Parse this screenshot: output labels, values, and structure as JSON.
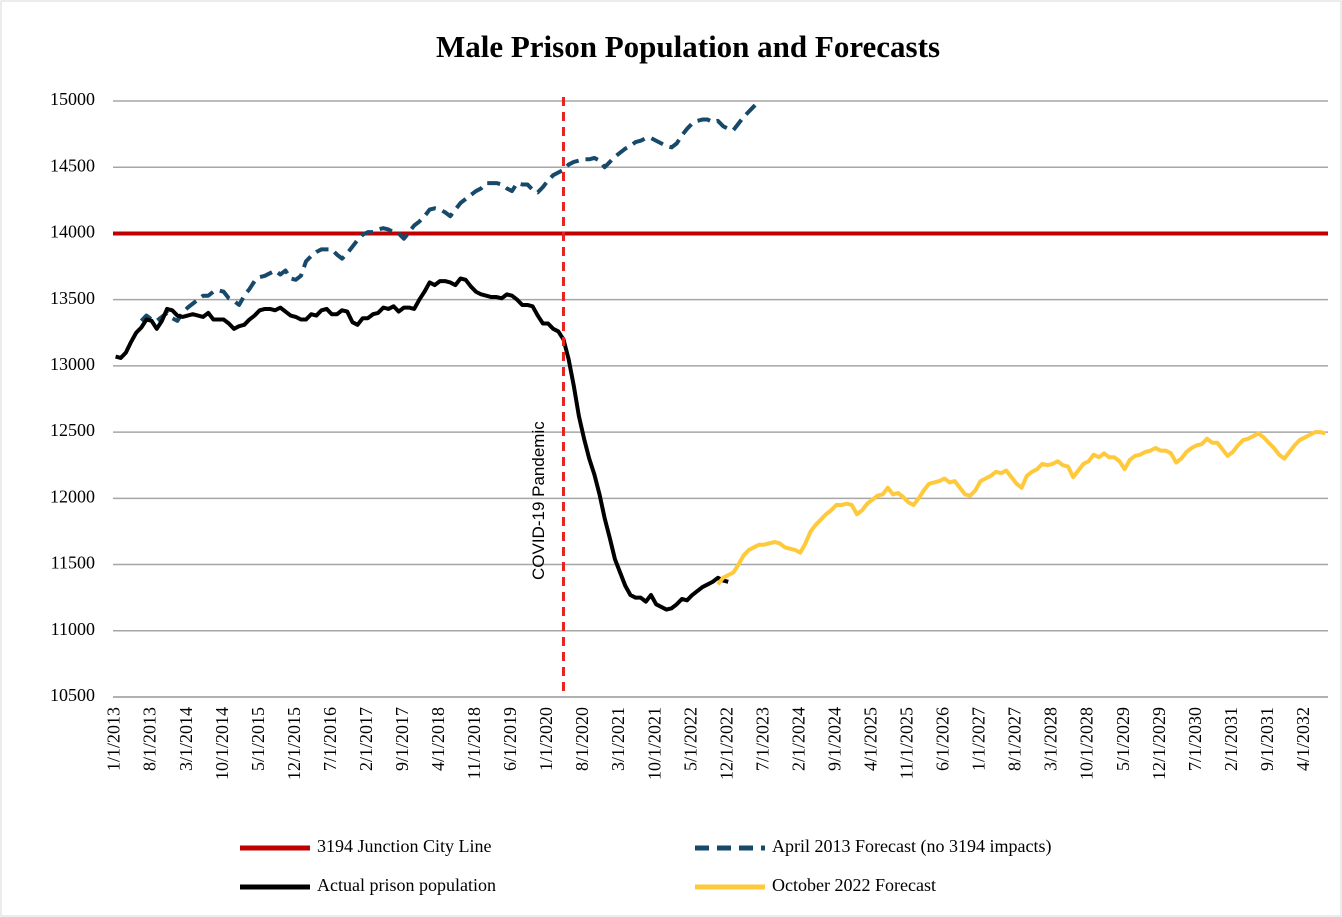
{
  "chart_data": {
    "type": "line",
    "title": "Male Prison Population and Forecasts",
    "categories": [
      "1/1/2013",
      null,
      null,
      null,
      null,
      null,
      null,
      "8/1/2013",
      null,
      null,
      null,
      null,
      null,
      null,
      "3/1/2014",
      null,
      null,
      null,
      null,
      null,
      null,
      "10/1/2014",
      null,
      null,
      null,
      null,
      null,
      null,
      "5/1/2015",
      null,
      null,
      null,
      null,
      null,
      null,
      "12/1/2015",
      null,
      null,
      null,
      null,
      null,
      null,
      "7/1/2016",
      null,
      null,
      null,
      null,
      null,
      null,
      "2/1/2017",
      null,
      null,
      null,
      null,
      null,
      null,
      "9/1/2017",
      null,
      null,
      null,
      null,
      null,
      null,
      "4/1/2018",
      null,
      null,
      null,
      null,
      null,
      null,
      "11/1/2018",
      null,
      null,
      null,
      null,
      null,
      null,
      "6/1/2019",
      null,
      null,
      null,
      null,
      null,
      null,
      "1/1/2020",
      null,
      null,
      null,
      null,
      null,
      null,
      "8/1/2020",
      null,
      null,
      null,
      null,
      null,
      null,
      "3/1/2021",
      null,
      null,
      null,
      null,
      null,
      null,
      "10/1/2021",
      null,
      null,
      null,
      null,
      null,
      null,
      "5/1/2022",
      null,
      null,
      null,
      null,
      null,
      null,
      "12/1/2022",
      null,
      null,
      null,
      null,
      null,
      null,
      "7/1/2023",
      null,
      null,
      null,
      null,
      null,
      null,
      "2/1/2024",
      null,
      null,
      null,
      null,
      null,
      null,
      "9/1/2024",
      null,
      null,
      null,
      null,
      null,
      null,
      "4/1/2025",
      null,
      null,
      null,
      null,
      null,
      null,
      "11/1/2025",
      null,
      null,
      null,
      null,
      null,
      null,
      "6/1/2026",
      null,
      null,
      null,
      null,
      null,
      null,
      "1/1/2027",
      null,
      null,
      null,
      null,
      null,
      null,
      "8/1/2027",
      null,
      null,
      null,
      null,
      null,
      null,
      "3/1/2028",
      null,
      null,
      null,
      null,
      null,
      null,
      "10/1/2028",
      null,
      null,
      null,
      null,
      null,
      null,
      "5/1/2029",
      null,
      null,
      null,
      null,
      null,
      null,
      "12/1/2029",
      null,
      null,
      null,
      null,
      null,
      null,
      "7/1/2030",
      null,
      null,
      null,
      null,
      null,
      null,
      "2/1/2031",
      null,
      null,
      null,
      null,
      null,
      null,
      "9/1/2031",
      null,
      null,
      null,
      null,
      null,
      null,
      "4/1/2032",
      null,
      null,
      null,
      null
    ],
    "reference_line": {
      "name": "3194 Junction City Line",
      "color": "#c00000",
      "value": 14000
    },
    "series": [
      {
        "name": "April 2013 Forecast (no 3194 impacts)",
        "color": "#17496b",
        "dashed": true,
        "values": [
          null,
          null,
          null,
          null,
          null,
          13340,
          13380,
          13350,
          13340,
          13370,
          13400,
          13360,
          13340,
          13400,
          13440,
          13470,
          13500,
          13530,
          13530,
          13560,
          13570,
          13560,
          13510,
          13490,
          13460,
          13530,
          13580,
          13640,
          13670,
          13680,
          13700,
          13720,
          13690,
          13720,
          13660,
          13650,
          13680,
          13790,
          13830,
          13860,
          13880,
          13880,
          13880,
          13840,
          13810,
          13850,
          13900,
          13950,
          13990,
          14010,
          14010,
          14030,
          14040,
          14030,
          14010,
          14000,
          13960,
          14010,
          14060,
          14090,
          14130,
          14180,
          14190,
          14180,
          14160,
          14130,
          14180,
          14230,
          14260,
          14290,
          14320,
          14340,
          14380,
          14380,
          14380,
          14370,
          14340,
          14320,
          14380,
          14370,
          14370,
          14330,
          14310,
          14350,
          14400,
          14440,
          14460,
          14480,
          14520,
          14540,
          14550,
          14560,
          14560,
          14570,
          14550,
          14500,
          14540,
          14580,
          14610,
          14640,
          14660,
          14690,
          14700,
          14720,
          14720,
          14700,
          14680,
          14660,
          14650,
          14680,
          14740,
          14790,
          14830,
          14850,
          14860,
          14860,
          14840,
          14850,
          14810,
          14790,
          14780,
          14830,
          14880,
          14920,
          14960,
          15000,
          null,
          null,
          null,
          null,
          null,
          null,
          null,
          null,
          null,
          null,
          null,
          null,
          null,
          null,
          null,
          null,
          null,
          null,
          null,
          null,
          null,
          null,
          null,
          null,
          null,
          null,
          null,
          null,
          null,
          null,
          null,
          null,
          null,
          null,
          null,
          null,
          null,
          null,
          null,
          null,
          null,
          null,
          null,
          null,
          null,
          null,
          null,
          null,
          null,
          null,
          null,
          null,
          null,
          null,
          null,
          null,
          null,
          null,
          null,
          null,
          null,
          null,
          null,
          null,
          null,
          null,
          null,
          null,
          null,
          null,
          null,
          null,
          null,
          null,
          null,
          null,
          null,
          null,
          null,
          null,
          null,
          null,
          null,
          null,
          null,
          null,
          null,
          null,
          null,
          null,
          null,
          null,
          null,
          null,
          null,
          null,
          null,
          null,
          null,
          null,
          null,
          null,
          null,
          null,
          null,
          null,
          null,
          null,
          null,
          null
        ]
      },
      {
        "name": "Actual prison population",
        "color": "#000000",
        "values": [
          13070,
          13060,
          13100,
          13180,
          13250,
          13290,
          13350,
          13340,
          13280,
          13340,
          13430,
          13420,
          13380,
          13370,
          13380,
          13390,
          13380,
          13370,
          13400,
          13350,
          13350,
          13350,
          13320,
          13280,
          13300,
          13310,
          13350,
          13380,
          13420,
          13430,
          13430,
          13420,
          13440,
          13410,
          13380,
          13370,
          13350,
          13350,
          13390,
          13380,
          13420,
          13430,
          13390,
          13390,
          13420,
          13410,
          13330,
          13310,
          13360,
          13360,
          13390,
          13400,
          13440,
          13430,
          13450,
          13410,
          13440,
          13440,
          13430,
          13500,
          13560,
          13630,
          13610,
          13640,
          13640,
          13630,
          13610,
          13660,
          13650,
          13600,
          13560,
          13540,
          13530,
          13520,
          13520,
          13510,
          13540,
          13530,
          13500,
          13460,
          13460,
          13450,
          13380,
          13320,
          13320,
          13280,
          13260,
          13200,
          13050,
          12850,
          12620,
          12450,
          12300,
          12180,
          12030,
          11850,
          11700,
          11540,
          11440,
          11340,
          11270,
          11250,
          11250,
          11220,
          11270,
          11200,
          11180,
          11160,
          11170,
          11200,
          11240,
          11230,
          11270,
          11300,
          11330,
          11350,
          11370,
          11400,
          11380,
          11370,
          null,
          null,
          null,
          null,
          null,
          null,
          null,
          null,
          null,
          null,
          null,
          null,
          null,
          null,
          null,
          null,
          null,
          null,
          null,
          null,
          null,
          null,
          null,
          null,
          null,
          null,
          null,
          null,
          null,
          null,
          null,
          null,
          null,
          null,
          null,
          null,
          null,
          null,
          null,
          null,
          null,
          null,
          null,
          null,
          null,
          null,
          null,
          null,
          null,
          null,
          null,
          null,
          null,
          null,
          null,
          null,
          null,
          null,
          null,
          null,
          null,
          null,
          null,
          null,
          null,
          null,
          null,
          null,
          null,
          null,
          null,
          null,
          null,
          null,
          null,
          null,
          null,
          null,
          null,
          null,
          null,
          null,
          null,
          null,
          null,
          null,
          null,
          null,
          null,
          null,
          null,
          null,
          null,
          null,
          null,
          null,
          null,
          null,
          null,
          null,
          null,
          null,
          null,
          null,
          null,
          null,
          null,
          null,
          null,
          null,
          null,
          null,
          null,
          null,
          null,
          null
        ]
      },
      {
        "name": "October 2022 Forecast",
        "color": "#ffc93c",
        "values": [
          null,
          null,
          null,
          null,
          null,
          null,
          null,
          null,
          null,
          null,
          null,
          null,
          null,
          null,
          null,
          null,
          null,
          null,
          null,
          null,
          null,
          null,
          null,
          null,
          null,
          null,
          null,
          null,
          null,
          null,
          null,
          null,
          null,
          null,
          null,
          null,
          null,
          null,
          null,
          null,
          null,
          null,
          null,
          null,
          null,
          null,
          null,
          null,
          null,
          null,
          null,
          null,
          null,
          null,
          null,
          null,
          null,
          null,
          null,
          null,
          null,
          null,
          null,
          null,
          null,
          null,
          null,
          null,
          null,
          null,
          null,
          null,
          null,
          null,
          null,
          null,
          null,
          null,
          null,
          null,
          null,
          null,
          null,
          null,
          null,
          null,
          null,
          null,
          null,
          null,
          null,
          null,
          null,
          null,
          null,
          null,
          null,
          null,
          null,
          null,
          null,
          null,
          null,
          null,
          null,
          null,
          null,
          null,
          null,
          null,
          null,
          null,
          null,
          null,
          null,
          null,
          null,
          11350,
          11400,
          11420,
          11440,
          11500,
          11570,
          11610,
          11630,
          11650,
          11650,
          11660,
          11670,
          11660,
          11630,
          11620,
          11610,
          11590,
          11660,
          11750,
          11800,
          11840,
          11880,
          11910,
          11950,
          11950,
          11960,
          11950,
          11880,
          11910,
          11960,
          11990,
          12020,
          12030,
          12080,
          12030,
          12040,
          12010,
          11970,
          11950,
          12000,
          12060,
          12110,
          12120,
          12130,
          12150,
          12120,
          12130,
          12080,
          12030,
          12020,
          12060,
          12130,
          12150,
          12170,
          12200,
          12190,
          12210,
          12160,
          12110,
          12080,
          12170,
          12200,
          12220,
          12260,
          12250,
          12260,
          12280,
          12250,
          12240,
          12160,
          12210,
          12260,
          12280,
          12330,
          12310,
          12340,
          12310,
          12310,
          12280,
          12220,
          12290,
          12320,
          12330,
          12350,
          12360,
          12380,
          12360,
          12360,
          12340,
          12270,
          12300,
          12350,
          12380,
          12400,
          12410,
          12450,
          12420,
          12420,
          12370,
          12320,
          12350,
          12400,
          12440,
          12450,
          12470,
          12490,
          12460,
          12420,
          12380,
          12330,
          12300,
          12350,
          12400,
          12440,
          12460,
          12480,
          12500,
          12500,
          12490
        ]
      }
    ],
    "vline": {
      "text": "COVID-19 Pandemic",
      "index": 87,
      "color": "#e8231f"
    },
    "ylim": [
      10500,
      15000
    ],
    "yticks": [
      10500,
      11000,
      11500,
      12000,
      12500,
      13000,
      13500,
      14000,
      14500,
      15000
    ],
    "grid": true,
    "legend": "bottom"
  }
}
